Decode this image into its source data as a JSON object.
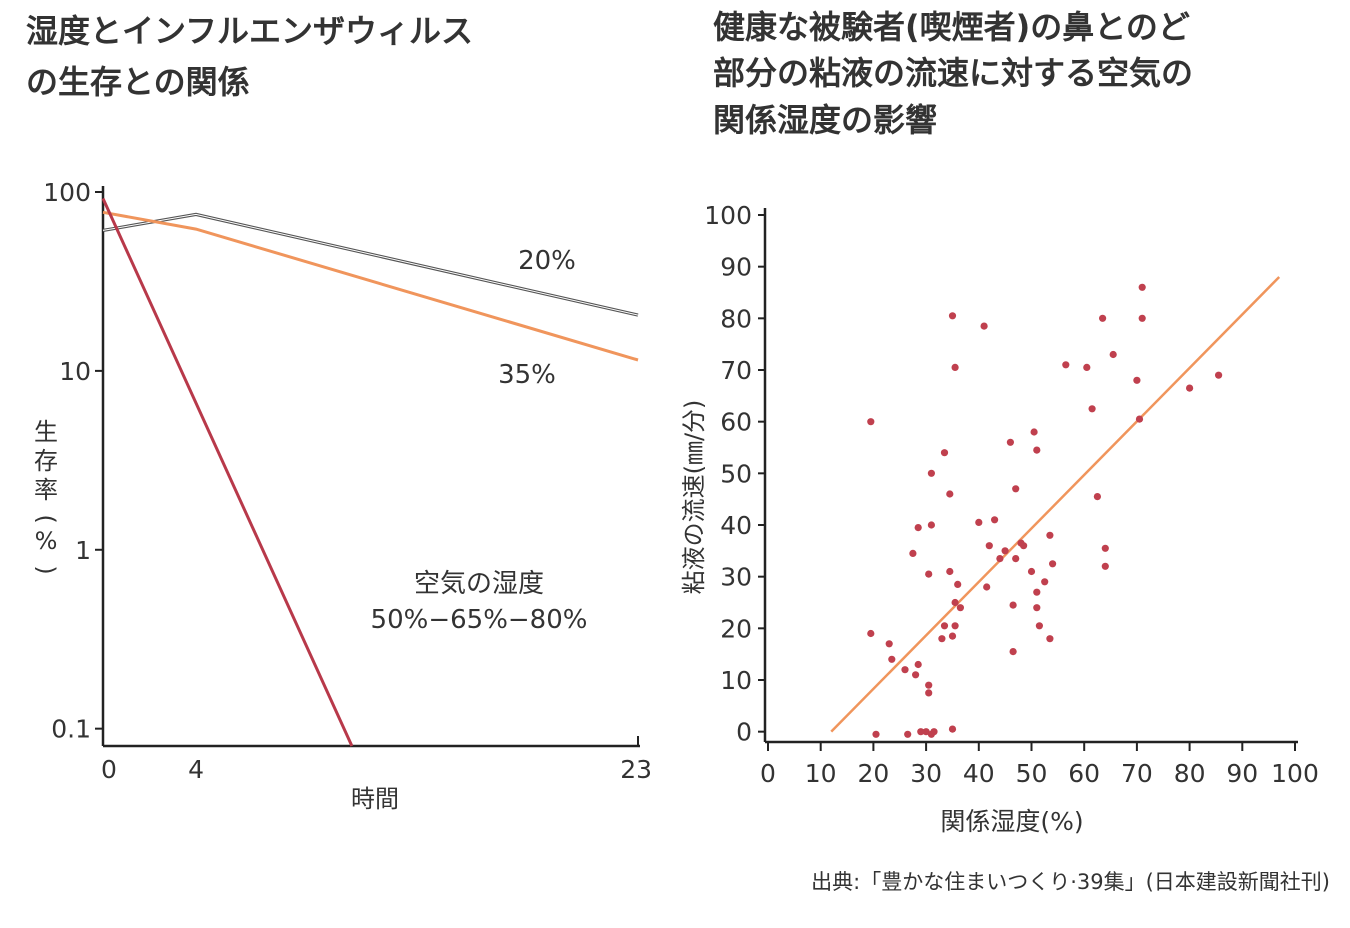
{
  "source_note": "出典:「豊かな住まいつくり·39集」(日本建設新聞社刊)",
  "colors": {
    "text": "#333333",
    "axis": "#222222",
    "gray_line": "#555555",
    "orange": "#f0955c",
    "red_line": "#b8394a",
    "dots": "#c0404e"
  },
  "chart_data": [
    {
      "type": "line",
      "title_lines": [
        "湿度とインフルエンザウィルス",
        "の生存との関係"
      ],
      "xlabel": "時間",
      "ylabel_chars": [
        "生",
        "存",
        "率",
        "(",
        "%",
        ")"
      ],
      "y_scale": "log",
      "xlim": [
        0,
        23
      ],
      "ylim": [
        0.08,
        100
      ],
      "x_ticks": [
        0,
        4,
        23
      ],
      "y_ticks": [
        {
          "value": 100,
          "label": "100"
        },
        {
          "value": 10,
          "label": "10"
        },
        {
          "value": 1,
          "label": "1"
        },
        {
          "value": 0.1,
          "label": "0.1"
        }
      ],
      "series": [
        {
          "name": "20%",
          "color": "#555555",
          "x": [
            0,
            4,
            23
          ],
          "y": [
            61,
            75,
            20.5
          ]
        },
        {
          "name": "35%",
          "color": "#f0955c",
          "x": [
            0,
            4,
            23
          ],
          "y": [
            77,
            62,
            11.5
          ]
        },
        {
          "name": "空気の湿度\n50%−65%−80%",
          "color": "#b8394a",
          "x": [
            0,
            10.7
          ],
          "y": [
            92,
            0.08
          ]
        }
      ],
      "annotations": {
        "humidity_20": "20%",
        "humidity_35": "35%",
        "humidity_high_line1": "空気の湿度",
        "humidity_high_line2": "50%−65%−80%"
      }
    },
    {
      "type": "scatter",
      "title_lines": [
        "健康な被験者(喫煙者)の鼻とのど",
        "部分の粘液の流速に対する空気の",
        "関係湿度の影響"
      ],
      "xlabel": "関係湿度(%)",
      "ylabel": "粘液の流速(㎜/分)",
      "xlim": [
        0,
        100
      ],
      "ylim": [
        -2,
        100
      ],
      "x_ticks": [
        0,
        10,
        20,
        30,
        40,
        50,
        60,
        70,
        80,
        90,
        100
      ],
      "y_ticks": [
        0,
        10,
        20,
        30,
        40,
        50,
        60,
        70,
        80,
        90,
        100
      ],
      "trend_line": {
        "color": "#f0955c",
        "x": [
          12,
          97
        ],
        "y": [
          0,
          88
        ]
      },
      "points": [
        [
          19.5,
          60
        ],
        [
          19.5,
          19
        ],
        [
          20.5,
          -0.5
        ],
        [
          23,
          17
        ],
        [
          23.5,
          14
        ],
        [
          26,
          12
        ],
        [
          26.5,
          -0.5
        ],
        [
          27.5,
          34.5
        ],
        [
          28,
          11
        ],
        [
          28.5,
          13
        ],
        [
          28.5,
          39.5
        ],
        [
          29,
          0
        ],
        [
          30,
          0
        ],
        [
          30.5,
          9
        ],
        [
          30.5,
          7.5
        ],
        [
          30.5,
          30.5
        ],
        [
          31,
          40
        ],
        [
          31,
          50
        ],
        [
          31,
          -0.5
        ],
        [
          31.5,
          0
        ],
        [
          33,
          18
        ],
        [
          33.5,
          20.5
        ],
        [
          33.5,
          54
        ],
        [
          34.5,
          46
        ],
        [
          34.5,
          31
        ],
        [
          35,
          80.5
        ],
        [
          35,
          18.5
        ],
        [
          35,
          0.5
        ],
        [
          35.5,
          70.5
        ],
        [
          35.5,
          20.5
        ],
        [
          35.5,
          25
        ],
        [
          36,
          28.5
        ],
        [
          36.5,
          24
        ],
        [
          40,
          40.5
        ],
        [
          41,
          78.5
        ],
        [
          41.5,
          28
        ],
        [
          42,
          36
        ],
        [
          43,
          41
        ],
        [
          44,
          33.5
        ],
        [
          45,
          35
        ],
        [
          46,
          56
        ],
        [
          46.5,
          24.5
        ],
        [
          46.5,
          15.5
        ],
        [
          47,
          47
        ],
        [
          47,
          33.5
        ],
        [
          48,
          36.5
        ],
        [
          48.5,
          36
        ],
        [
          50,
          31
        ],
        [
          50.5,
          58
        ],
        [
          51,
          54.5
        ],
        [
          51,
          27
        ],
        [
          51,
          24
        ],
        [
          51.5,
          20.5
        ],
        [
          52.5,
          29
        ],
        [
          53.5,
          38
        ],
        [
          53.5,
          18
        ],
        [
          54,
          32.5
        ],
        [
          56.5,
          71
        ],
        [
          60.5,
          70.5
        ],
        [
          61.5,
          62.5
        ],
        [
          62.5,
          45.5
        ],
        [
          63.5,
          80
        ],
        [
          64,
          35.5
        ],
        [
          64,
          32
        ],
        [
          65.5,
          73
        ],
        [
          70,
          68
        ],
        [
          70.5,
          60.5
        ],
        [
          71,
          86
        ],
        [
          71,
          80
        ],
        [
          80,
          66.5
        ],
        [
          85.5,
          69
        ]
      ]
    }
  ]
}
